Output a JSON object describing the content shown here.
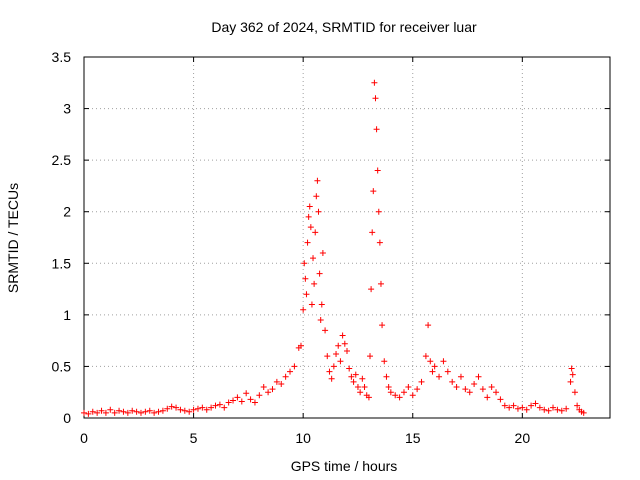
{
  "chart_data": {
    "type": "scatter",
    "title": "Day 362 of 2024, SRMTID for receiver luar",
    "xlabel": "GPS time / hours",
    "ylabel": "SRMTID / TECUs",
    "xlim": [
      0,
      24
    ],
    "ylim": [
      0,
      3.5
    ],
    "xticks": [
      0,
      5,
      10,
      15,
      20
    ],
    "xtick_labels": [
      "0",
      "5",
      "10",
      "15",
      "20"
    ],
    "yticks": [
      0,
      0.5,
      1,
      1.5,
      2,
      2.5,
      3,
      3.5
    ],
    "ytick_labels": [
      "0",
      "0.5",
      "1",
      "1.5",
      "2",
      "2.5",
      "3",
      "3.5"
    ],
    "grid": true,
    "marker": "+",
    "color": "#ff0000",
    "series": [
      {
        "name": "SRMTID",
        "points": [
          [
            0.0,
            0.05
          ],
          [
            0.2,
            0.04
          ],
          [
            0.4,
            0.06
          ],
          [
            0.6,
            0.05
          ],
          [
            0.8,
            0.07
          ],
          [
            1.0,
            0.05
          ],
          [
            1.2,
            0.08
          ],
          [
            1.4,
            0.05
          ],
          [
            1.6,
            0.07
          ],
          [
            1.8,
            0.06
          ],
          [
            2.0,
            0.05
          ],
          [
            2.2,
            0.07
          ],
          [
            2.4,
            0.06
          ],
          [
            2.6,
            0.05
          ],
          [
            2.8,
            0.06
          ],
          [
            3.0,
            0.07
          ],
          [
            3.2,
            0.05
          ],
          [
            3.4,
            0.06
          ],
          [
            3.6,
            0.07
          ],
          [
            3.8,
            0.09
          ],
          [
            4.0,
            0.11
          ],
          [
            4.2,
            0.1
          ],
          [
            4.4,
            0.08
          ],
          [
            4.6,
            0.07
          ],
          [
            4.8,
            0.06
          ],
          [
            5.0,
            0.08
          ],
          [
            5.2,
            0.09
          ],
          [
            5.4,
            0.1
          ],
          [
            5.6,
            0.08
          ],
          [
            5.8,
            0.1
          ],
          [
            6.0,
            0.12
          ],
          [
            6.2,
            0.13
          ],
          [
            6.4,
            0.1
          ],
          [
            6.6,
            0.15
          ],
          [
            6.8,
            0.17
          ],
          [
            7.0,
            0.2
          ],
          [
            7.2,
            0.16
          ],
          [
            7.4,
            0.24
          ],
          [
            7.6,
            0.18
          ],
          [
            7.8,
            0.15
          ],
          [
            8.0,
            0.22
          ],
          [
            8.2,
            0.3
          ],
          [
            8.4,
            0.25
          ],
          [
            8.6,
            0.28
          ],
          [
            8.8,
            0.35
          ],
          [
            9.0,
            0.33
          ],
          [
            9.2,
            0.4
          ],
          [
            9.4,
            0.45
          ],
          [
            9.6,
            0.5
          ],
          [
            9.8,
            0.68
          ],
          [
            9.9,
            0.7
          ],
          [
            10.0,
            1.05
          ],
          [
            10.05,
            1.5
          ],
          [
            10.1,
            1.35
          ],
          [
            10.15,
            1.2
          ],
          [
            10.2,
            1.7
          ],
          [
            10.25,
            1.95
          ],
          [
            10.3,
            2.05
          ],
          [
            10.35,
            1.85
          ],
          [
            10.4,
            1.1
          ],
          [
            10.45,
            1.55
          ],
          [
            10.5,
            1.3
          ],
          [
            10.55,
            1.8
          ],
          [
            10.6,
            2.15
          ],
          [
            10.65,
            2.3
          ],
          [
            10.7,
            2.0
          ],
          [
            10.75,
            1.4
          ],
          [
            10.8,
            0.95
          ],
          [
            10.85,
            1.1
          ],
          [
            10.9,
            1.6
          ],
          [
            11.0,
            0.85
          ],
          [
            11.1,
            0.6
          ],
          [
            11.2,
            0.45
          ],
          [
            11.3,
            0.38
          ],
          [
            11.4,
            0.5
          ],
          [
            11.5,
            0.62
          ],
          [
            11.6,
            0.7
          ],
          [
            11.7,
            0.55
          ],
          [
            11.8,
            0.8
          ],
          [
            11.9,
            0.72
          ],
          [
            12.0,
            0.65
          ],
          [
            12.1,
            0.48
          ],
          [
            12.2,
            0.4
          ],
          [
            12.3,
            0.35
          ],
          [
            12.4,
            0.42
          ],
          [
            12.5,
            0.3
          ],
          [
            12.6,
            0.25
          ],
          [
            12.7,
            0.38
          ],
          [
            12.8,
            0.3
          ],
          [
            12.9,
            0.22
          ],
          [
            13.0,
            0.2
          ],
          [
            13.05,
            0.6
          ],
          [
            13.1,
            1.25
          ],
          [
            13.15,
            1.8
          ],
          [
            13.2,
            2.2
          ],
          [
            13.25,
            3.25
          ],
          [
            13.3,
            3.1
          ],
          [
            13.35,
            2.8
          ],
          [
            13.4,
            2.4
          ],
          [
            13.45,
            2.0
          ],
          [
            13.5,
            1.7
          ],
          [
            13.55,
            1.3
          ],
          [
            13.6,
            0.9
          ],
          [
            13.7,
            0.55
          ],
          [
            13.8,
            0.4
          ],
          [
            13.9,
            0.3
          ],
          [
            14.0,
            0.25
          ],
          [
            14.2,
            0.22
          ],
          [
            14.4,
            0.2
          ],
          [
            14.6,
            0.25
          ],
          [
            14.8,
            0.3
          ],
          [
            15.0,
            0.22
          ],
          [
            15.2,
            0.28
          ],
          [
            15.4,
            0.35
          ],
          [
            15.6,
            0.6
          ],
          [
            15.7,
            0.9
          ],
          [
            15.8,
            0.55
          ],
          [
            15.9,
            0.45
          ],
          [
            16.0,
            0.5
          ],
          [
            16.2,
            0.4
          ],
          [
            16.4,
            0.55
          ],
          [
            16.6,
            0.45
          ],
          [
            16.8,
            0.35
          ],
          [
            17.0,
            0.3
          ],
          [
            17.2,
            0.4
          ],
          [
            17.4,
            0.28
          ],
          [
            17.6,
            0.25
          ],
          [
            17.8,
            0.33
          ],
          [
            18.0,
            0.4
          ],
          [
            18.2,
            0.28
          ],
          [
            18.4,
            0.2
          ],
          [
            18.6,
            0.3
          ],
          [
            18.8,
            0.25
          ],
          [
            19.0,
            0.18
          ],
          [
            19.2,
            0.12
          ],
          [
            19.4,
            0.1
          ],
          [
            19.6,
            0.12
          ],
          [
            19.8,
            0.09
          ],
          [
            20.0,
            0.1
          ],
          [
            20.2,
            0.08
          ],
          [
            20.4,
            0.12
          ],
          [
            20.6,
            0.14
          ],
          [
            20.8,
            0.1
          ],
          [
            21.0,
            0.08
          ],
          [
            21.2,
            0.07
          ],
          [
            21.4,
            0.1
          ],
          [
            21.6,
            0.08
          ],
          [
            21.8,
            0.07
          ],
          [
            22.0,
            0.09
          ],
          [
            22.2,
            0.35
          ],
          [
            22.25,
            0.48
          ],
          [
            22.3,
            0.42
          ],
          [
            22.4,
            0.25
          ],
          [
            22.5,
            0.12
          ],
          [
            22.6,
            0.08
          ],
          [
            22.7,
            0.06
          ],
          [
            22.8,
            0.05
          ]
        ]
      }
    ]
  }
}
